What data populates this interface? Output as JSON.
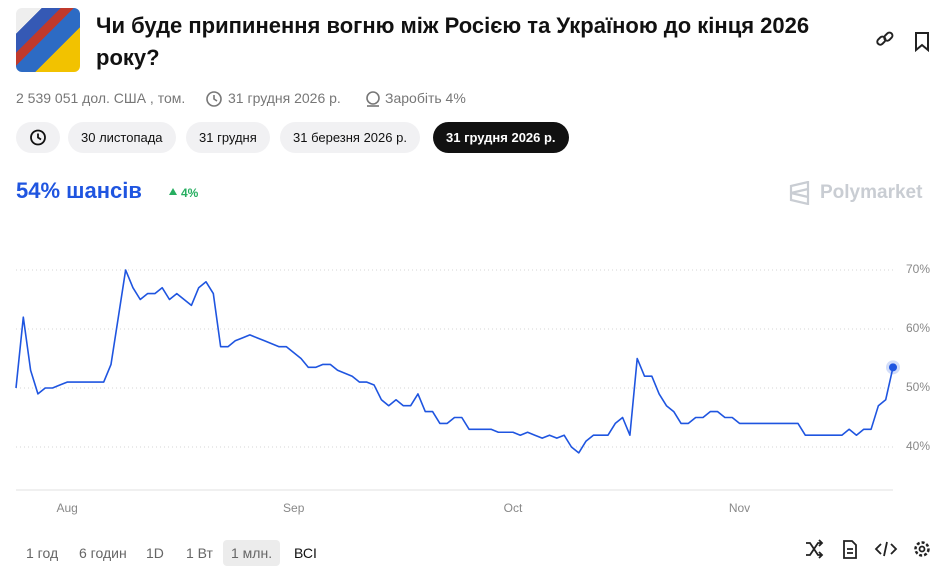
{
  "header": {
    "title": "Чи буде припинення вогню між Росією та Україною до кінця 2026 року?",
    "volume": "2 539 051 дол. США , том.",
    "end_date": "31 грудня 2026 р.",
    "reward": "Заробіть 4%"
  },
  "date_tabs": [
    "30 листопада",
    "31 грудня",
    "31 березня 2026 р.",
    "31 грудня 2026 р."
  ],
  "chance": "54% шансів",
  "change": "4%",
  "brand": "Polymarket",
  "ranges": [
    "1 год",
    "6 годин",
    "1D",
    "1 Вт",
    "1 млн.",
    "ВСІ"
  ],
  "chart_data": {
    "type": "line",
    "color": "#1f55e0",
    "values": [
      50,
      62,
      53,
      49,
      50,
      50,
      50.5,
      51,
      51,
      51,
      51,
      51,
      51,
      54,
      62,
      70,
      67,
      65,
      66,
      66,
      67,
      65,
      66,
      65,
      64,
      67,
      68,
      66,
      57,
      57,
      58,
      58.5,
      59,
      58.5,
      58,
      57.5,
      57,
      57,
      56,
      55,
      53.5,
      53.5,
      54,
      54,
      53,
      52.5,
      52,
      51,
      51,
      50.5,
      48,
      47,
      48,
      47,
      47,
      49,
      46,
      46,
      44,
      44,
      45,
      45,
      43,
      43,
      43,
      43,
      42.5,
      42.5,
      42.5,
      42,
      42.5,
      42,
      41.5,
      42,
      41.5,
      42,
      40,
      39,
      41,
      42,
      42,
      42,
      44,
      45,
      42,
      55,
      52,
      52,
      49,
      47,
      46,
      44,
      44,
      45,
      45,
      46,
      46,
      45,
      45,
      44,
      44,
      44,
      44,
      44,
      44,
      44,
      44,
      44,
      42,
      42,
      42,
      42,
      42,
      42,
      43,
      42,
      43,
      43,
      47,
      48,
      53.5
    ],
    "xlim": [
      0,
      120
    ],
    "xticks": [
      {
        "value": 7,
        "label": "Aug"
      },
      {
        "value": 38,
        "label": "Sep"
      },
      {
        "value": 68,
        "label": "Oct"
      },
      {
        "value": 99,
        "label": "Nov"
      }
    ],
    "ylim": [
      33,
      75
    ],
    "yticks": [
      {
        "value": 40,
        "label": "40%"
      },
      {
        "value": 50,
        "label": "50%"
      },
      {
        "value": 60,
        "label": "60%"
      },
      {
        "value": 70,
        "label": "70%"
      }
    ],
    "grid": true
  }
}
